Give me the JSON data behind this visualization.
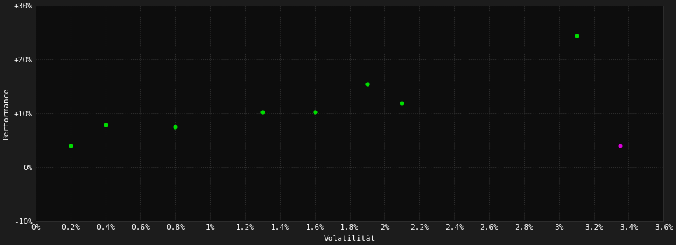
{
  "background_color": "#1c1c1c",
  "plot_bg_color": "#0d0d0d",
  "text_color": "#ffffff",
  "xlabel": "Volatilität",
  "ylabel": "Performance",
  "xlim": [
    0.0,
    0.036
  ],
  "ylim": [
    -0.1,
    0.3
  ],
  "xtick_values": [
    0.0,
    0.002,
    0.004,
    0.006,
    0.008,
    0.01,
    0.012,
    0.014,
    0.016,
    0.018,
    0.02,
    0.022,
    0.024,
    0.026,
    0.028,
    0.03,
    0.032,
    0.034,
    0.036
  ],
  "ytick_values": [
    -0.1,
    0.0,
    0.1,
    0.2,
    0.3
  ],
  "green_points": [
    [
      0.002,
      0.04
    ],
    [
      0.004,
      0.08
    ],
    [
      0.008,
      0.075
    ],
    [
      0.013,
      0.103
    ],
    [
      0.016,
      0.103
    ],
    [
      0.019,
      0.155
    ],
    [
      0.021,
      0.12
    ],
    [
      0.031,
      0.245
    ]
  ],
  "magenta_point": [
    0.0335,
    0.04
  ],
  "green_color": "#00dd00",
  "magenta_color": "#dd00dd",
  "marker_size": 20,
  "font_size": 8,
  "tick_font_size": 8
}
